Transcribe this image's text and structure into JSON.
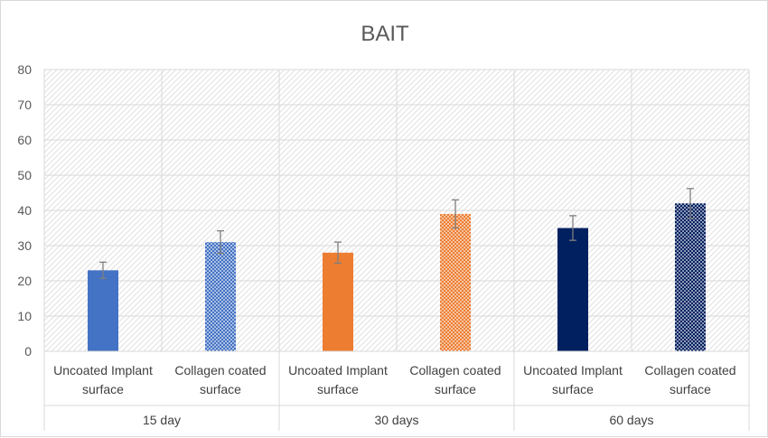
{
  "chart_data": {
    "type": "bar",
    "title": "BAIT",
    "xlabel": "",
    "ylabel": "",
    "ylim": [
      0,
      80
    ],
    "yticks": [
      0,
      10,
      20,
      30,
      40,
      50,
      60,
      70,
      80
    ],
    "grid": true,
    "legend": "none",
    "groups": [
      {
        "label": "15 day",
        "bars": [
          {
            "category": [
              "Uncoated Implant",
              "surface"
            ],
            "value": 23,
            "error": 2.3,
            "color": "#4472c4",
            "pattern": "solid"
          },
          {
            "category": [
              "Collagen coated",
              "surface"
            ],
            "value": 31,
            "error": 3.2,
            "color": "#4472c4",
            "pattern": "dotted"
          }
        ]
      },
      {
        "label": "30 days",
        "bars": [
          {
            "category": [
              "Uncoated Implant",
              "surface"
            ],
            "value": 28,
            "error": 3.0,
            "color": "#ed7d31",
            "pattern": "solid"
          },
          {
            "category": [
              "Collagen coated",
              "surface"
            ],
            "value": 39,
            "error": 4.0,
            "color": "#ed7d31",
            "pattern": "dotted"
          }
        ]
      },
      {
        "label": "60 days",
        "bars": [
          {
            "category": [
              "Uncoated Implant",
              "surface"
            ],
            "value": 35,
            "error": 3.5,
            "color": "#002060",
            "pattern": "solid"
          },
          {
            "category": [
              "Collagen coated",
              "surface"
            ],
            "value": 42,
            "error": 4.2,
            "color": "#002060",
            "pattern": "dotted"
          }
        ]
      }
    ]
  }
}
